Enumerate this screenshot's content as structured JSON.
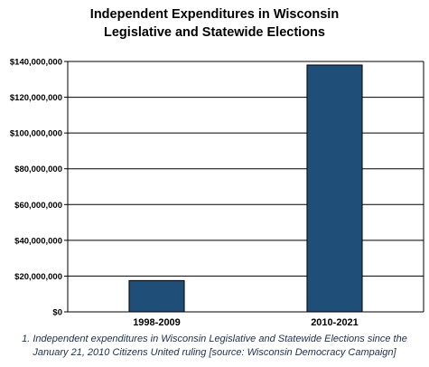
{
  "chart_data": {
    "type": "bar",
    "title_lines": [
      "Independent Expenditures in Wisconsin",
      "Legislative and Statewide Elections"
    ],
    "categories": [
      "1998-2009",
      "2010-2021"
    ],
    "values": [
      17500000,
      138000000
    ],
    "ylim": [
      0,
      140000000
    ],
    "yticks": [
      0,
      20000000,
      40000000,
      60000000,
      80000000,
      100000000,
      120000000,
      140000000
    ],
    "ytick_labels": [
      "$0",
      "$20,000,000",
      "$40,000,000",
      "$60,000,000",
      "$80,000,000",
      "$100,000,000",
      "$120,000,000",
      "$140,000,000"
    ],
    "bar_color": "#1f4e79",
    "grid": true,
    "legend": "none"
  },
  "footnote": "1. Independent expenditures in Wisconsin Legislative and Statewide Elections since the January 21, 2010 Citizens United ruling [source: Wisconsin Democracy Campaign]"
}
